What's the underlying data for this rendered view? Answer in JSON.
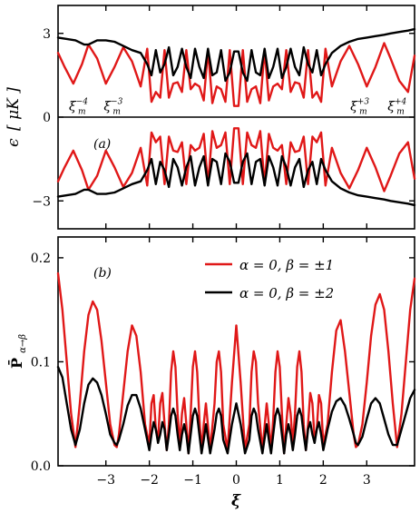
{
  "figure": {
    "xlabel": "ξ",
    "x_ticks": [
      "−3",
      "−2",
      "−1",
      "0",
      "1",
      "2",
      "3"
    ],
    "colors": {
      "red": "#e01818",
      "black": "#000000"
    }
  },
  "chart_data": [
    {
      "type": "line",
      "panel_label": "(a)",
      "ylabel_parts": {
        "sym": "ϵ",
        "open": "[",
        "unit": "μK",
        "close": "]"
      },
      "xlim": [
        -4.1,
        4.1
      ],
      "ylim": [
        -4.0,
        4.0
      ],
      "y_ticks": [
        "3",
        "0",
        "−3"
      ],
      "y_tick_values": [
        3,
        0,
        -3
      ],
      "annotations": [
        {
          "base": "ξ",
          "sub": "m",
          "sup": "−4",
          "x": -3.85,
          "y": 0.25
        },
        {
          "base": "ξ",
          "sub": "m",
          "sup": "−3",
          "x": -3.05,
          "y": 0.25
        },
        {
          "base": "ξ",
          "sub": "m",
          "sup": "+3",
          "x": 2.62,
          "y": 0.25
        },
        {
          "base": "ξ",
          "sub": "m",
          "sup": "+4",
          "x": 3.48,
          "y": 0.25
        }
      ],
      "series": [
        {
          "color": "#e01818",
          "x": [
            -4.1,
            -3.95,
            -3.75,
            -3.55,
            -3.4,
            -3.2,
            -3.0,
            -2.8,
            -2.6,
            -2.4,
            -2.2,
            -2.05,
            -1.95,
            -1.85,
            -1.75,
            -1.65,
            -1.55,
            -1.45,
            -1.35,
            -1.25,
            -1.15,
            -1.05,
            -0.95,
            -0.85,
            -0.75,
            -0.65,
            -0.55,
            -0.45,
            -0.35,
            -0.25,
            -0.15,
            -0.05,
            0.05,
            0.15,
            0.25,
            0.35,
            0.45,
            0.55,
            0.65,
            0.75,
            0.85,
            0.95,
            1.05,
            1.15,
            1.25,
            1.35,
            1.45,
            1.55,
            1.65,
            1.75,
            1.85,
            1.95,
            2.05,
            2.2,
            2.4,
            2.6,
            2.8,
            3.0,
            3.2,
            3.4,
            3.55,
            3.75,
            3.95,
            4.1
          ],
          "y": [
            2.3,
            1.8,
            1.2,
            1.9,
            2.6,
            2.1,
            1.2,
            1.8,
            2.5,
            2.0,
            1.1,
            2.45,
            0.55,
            0.9,
            0.7,
            2.4,
            0.7,
            1.2,
            1.25,
            0.9,
            2.4,
            1.0,
            1.2,
            1.1,
            0.6,
            2.4,
            0.5,
            1.1,
            1.0,
            0.55,
            2.4,
            0.4,
            0.4,
            2.4,
            0.55,
            1.0,
            1.1,
            0.5,
            2.4,
            0.6,
            1.1,
            1.2,
            1.0,
            2.4,
            0.9,
            1.25,
            1.2,
            0.7,
            2.4,
            0.7,
            0.9,
            0.55,
            2.45,
            1.1,
            2.0,
            2.55,
            1.9,
            1.1,
            1.8,
            2.65,
            2.1,
            1.3,
            0.9,
            2.2
          ]
        },
        {
          "color": "#000000",
          "x": [
            -4.1,
            -3.9,
            -3.7,
            -3.5,
            -3.4,
            -3.2,
            -3.0,
            -2.8,
            -2.6,
            -2.4,
            -2.2,
            -2.05,
            -1.95,
            -1.85,
            -1.75,
            -1.65,
            -1.55,
            -1.45,
            -1.35,
            -1.25,
            -1.15,
            -1.05,
            -0.95,
            -0.85,
            -0.75,
            -0.65,
            -0.55,
            -0.45,
            -0.35,
            -0.25,
            -0.15,
            -0.05,
            0.05,
            0.15,
            0.25,
            0.35,
            0.45,
            0.55,
            0.65,
            0.75,
            0.85,
            0.95,
            1.05,
            1.15,
            1.25,
            1.35,
            1.45,
            1.55,
            1.65,
            1.75,
            1.85,
            1.95,
            2.05,
            2.2,
            2.4,
            2.6,
            2.8,
            3.0,
            3.2,
            3.4,
            3.55,
            3.75,
            3.95,
            4.1
          ],
          "y": [
            2.85,
            2.8,
            2.75,
            2.6,
            2.6,
            2.75,
            2.75,
            2.7,
            2.55,
            2.4,
            2.3,
            1.9,
            1.5,
            2.4,
            1.6,
            1.9,
            2.5,
            1.5,
            1.8,
            2.45,
            1.8,
            1.4,
            2.45,
            1.8,
            1.4,
            2.45,
            1.5,
            1.6,
            2.4,
            1.3,
            1.6,
            2.35,
            2.35,
            1.6,
            1.3,
            2.4,
            1.6,
            1.5,
            2.45,
            1.4,
            1.8,
            2.45,
            1.4,
            1.8,
            2.45,
            1.8,
            1.5,
            2.5,
            1.9,
            1.6,
            2.4,
            1.5,
            1.9,
            2.3,
            2.55,
            2.7,
            2.8,
            2.85,
            2.9,
            2.95,
            3.0,
            3.05,
            3.1,
            3.15
          ]
        },
        {
          "color": "#e01818",
          "x": [
            -4.1,
            -3.95,
            -3.75,
            -3.55,
            -3.4,
            -3.2,
            -3.0,
            -2.8,
            -2.6,
            -2.4,
            -2.2,
            -2.05,
            -1.95,
            -1.85,
            -1.75,
            -1.65,
            -1.55,
            -1.45,
            -1.35,
            -1.25,
            -1.15,
            -1.05,
            -0.95,
            -0.85,
            -0.75,
            -0.65,
            -0.55,
            -0.45,
            -0.35,
            -0.25,
            -0.15,
            -0.05,
            0.05,
            0.15,
            0.25,
            0.35,
            0.45,
            0.55,
            0.65,
            0.75,
            0.85,
            0.95,
            1.05,
            1.15,
            1.25,
            1.35,
            1.45,
            1.55,
            1.65,
            1.75,
            1.85,
            1.95,
            2.05,
            2.2,
            2.4,
            2.6,
            2.8,
            3.0,
            3.2,
            3.4,
            3.55,
            3.75,
            3.95,
            4.1
          ],
          "y": [
            -2.3,
            -1.8,
            -1.2,
            -1.9,
            -2.6,
            -2.1,
            -1.2,
            -1.8,
            -2.5,
            -2.0,
            -1.1,
            -2.45,
            -0.55,
            -0.9,
            -0.7,
            -2.4,
            -0.7,
            -1.2,
            -1.25,
            -0.9,
            -2.4,
            -1.0,
            -1.2,
            -1.1,
            -0.6,
            -2.4,
            -0.5,
            -1.1,
            -1.0,
            -0.55,
            -2.4,
            -0.4,
            -0.4,
            -2.4,
            -0.55,
            -1.0,
            -1.1,
            -0.5,
            -2.4,
            -0.6,
            -1.1,
            -1.2,
            -1.0,
            -2.4,
            -0.9,
            -1.25,
            -1.2,
            -0.7,
            -2.4,
            -0.7,
            -0.9,
            -0.55,
            -2.45,
            -1.1,
            -2.0,
            -2.55,
            -1.9,
            -1.1,
            -1.8,
            -2.65,
            -2.1,
            -1.3,
            -0.9,
            -2.2
          ]
        },
        {
          "color": "#000000",
          "x": [
            -4.1,
            -3.9,
            -3.7,
            -3.5,
            -3.4,
            -3.2,
            -3.0,
            -2.8,
            -2.6,
            -2.4,
            -2.2,
            -2.05,
            -1.95,
            -1.85,
            -1.75,
            -1.65,
            -1.55,
            -1.45,
            -1.35,
            -1.25,
            -1.15,
            -1.05,
            -0.95,
            -0.85,
            -0.75,
            -0.65,
            -0.55,
            -0.45,
            -0.35,
            -0.25,
            -0.15,
            -0.05,
            0.05,
            0.15,
            0.25,
            0.35,
            0.45,
            0.55,
            0.65,
            0.75,
            0.85,
            0.95,
            1.05,
            1.15,
            1.25,
            1.35,
            1.45,
            1.55,
            1.65,
            1.75,
            1.85,
            1.95,
            2.05,
            2.2,
            2.4,
            2.6,
            2.8,
            3.0,
            3.2,
            3.4,
            3.55,
            3.75,
            3.95,
            4.1
          ],
          "y": [
            -2.85,
            -2.8,
            -2.75,
            -2.6,
            -2.6,
            -2.75,
            -2.75,
            -2.7,
            -2.55,
            -2.4,
            -2.3,
            -1.9,
            -1.5,
            -2.4,
            -1.6,
            -1.9,
            -2.5,
            -1.5,
            -1.8,
            -2.45,
            -1.8,
            -1.4,
            -2.45,
            -1.8,
            -1.4,
            -2.45,
            -1.5,
            -1.6,
            -2.4,
            -1.3,
            -1.6,
            -2.35,
            -2.35,
            -1.6,
            -1.3,
            -2.4,
            -1.6,
            -1.5,
            -2.45,
            -1.4,
            -1.8,
            -2.45,
            -1.4,
            -1.8,
            -2.45,
            -1.8,
            -1.5,
            -2.5,
            -1.9,
            -1.6,
            -2.4,
            -1.5,
            -1.9,
            -2.3,
            -2.55,
            -2.7,
            -2.8,
            -2.85,
            -2.9,
            -2.95,
            -3.0,
            -3.05,
            -3.1,
            -3.15
          ]
        }
      ]
    },
    {
      "type": "line",
      "panel_label": "(b)",
      "ylabel_parts": {
        "base": "P̄",
        "sub": "α→β"
      },
      "xlim": [
        -4.1,
        4.1
      ],
      "ylim": [
        0.0,
        0.22
      ],
      "y_ticks": [
        "0.2",
        "0.1",
        "0.0"
      ],
      "y_tick_values": [
        0.2,
        0.1,
        0.0
      ],
      "series": [
        {
          "name": "α = 0, β = ±1",
          "color": "#e01818",
          "x": [
            -4.1,
            -4.0,
            -3.9,
            -3.8,
            -3.7,
            -3.6,
            -3.5,
            -3.4,
            -3.3,
            -3.2,
            -3.1,
            -3.0,
            -2.9,
            -2.8,
            -2.75,
            -2.7,
            -2.6,
            -2.5,
            -2.4,
            -2.3,
            -2.2,
            -2.1,
            -2.0,
            -1.95,
            -1.9,
            -1.85,
            -1.8,
            -1.75,
            -1.7,
            -1.65,
            -1.6,
            -1.55,
            -1.5,
            -1.45,
            -1.4,
            -1.35,
            -1.3,
            -1.25,
            -1.2,
            -1.15,
            -1.1,
            -1.05,
            -1.0,
            -0.95,
            -0.9,
            -0.85,
            -0.8,
            -0.75,
            -0.7,
            -0.6,
            -0.5,
            -0.45,
            -0.4,
            -0.35,
            -0.3,
            -0.2,
            -0.1,
            0.0,
            0.1,
            0.2,
            0.3,
            0.35,
            0.4,
            0.45,
            0.5,
            0.6,
            0.7,
            0.75,
            0.8,
            0.85,
            0.9,
            0.95,
            1.0,
            1.05,
            1.1,
            1.15,
            1.2,
            1.25,
            1.3,
            1.35,
            1.4,
            1.45,
            1.5,
            1.55,
            1.6,
            1.65,
            1.7,
            1.75,
            1.8,
            1.85,
            1.9,
            1.95,
            2.0,
            2.1,
            2.2,
            2.3,
            2.4,
            2.5,
            2.6,
            2.7,
            2.75,
            2.8,
            2.9,
            3.0,
            3.1,
            3.2,
            3.3,
            3.4,
            3.5,
            3.6,
            3.7,
            3.8,
            3.9,
            4.0,
            4.1
          ],
          "y": [
            0.185,
            0.15,
            0.1,
            0.05,
            0.018,
            0.06,
            0.11,
            0.145,
            0.158,
            0.15,
            0.12,
            0.08,
            0.04,
            0.02,
            0.018,
            0.03,
            0.07,
            0.11,
            0.135,
            0.125,
            0.09,
            0.04,
            0.02,
            0.06,
            0.068,
            0.035,
            0.025,
            0.06,
            0.07,
            0.04,
            0.015,
            0.04,
            0.09,
            0.11,
            0.095,
            0.05,
            0.02,
            0.05,
            0.065,
            0.04,
            0.012,
            0.05,
            0.095,
            0.11,
            0.09,
            0.045,
            0.015,
            0.04,
            0.06,
            0.015,
            0.06,
            0.1,
            0.11,
            0.09,
            0.04,
            0.015,
            0.08,
            0.135,
            0.08,
            0.015,
            0.04,
            0.09,
            0.11,
            0.1,
            0.06,
            0.015,
            0.06,
            0.04,
            0.015,
            0.045,
            0.09,
            0.11,
            0.095,
            0.05,
            0.012,
            0.04,
            0.065,
            0.05,
            0.02,
            0.05,
            0.095,
            0.11,
            0.09,
            0.04,
            0.015,
            0.04,
            0.07,
            0.06,
            0.025,
            0.035,
            0.068,
            0.06,
            0.02,
            0.04,
            0.09,
            0.13,
            0.14,
            0.11,
            0.07,
            0.03,
            0.018,
            0.02,
            0.04,
            0.08,
            0.125,
            0.155,
            0.165,
            0.15,
            0.11,
            0.06,
            0.018,
            0.05,
            0.1,
            0.15,
            0.18
          ]
        },
        {
          "name": "α = 0, β = ±2",
          "color": "#000000",
          "x": [
            -4.1,
            -4.0,
            -3.9,
            -3.8,
            -3.7,
            -3.6,
            -3.5,
            -3.4,
            -3.3,
            -3.2,
            -3.1,
            -3.0,
            -2.9,
            -2.8,
            -2.75,
            -2.7,
            -2.6,
            -2.5,
            -2.4,
            -2.3,
            -2.2,
            -2.1,
            -2.0,
            -1.95,
            -1.9,
            -1.85,
            -1.8,
            -1.75,
            -1.7,
            -1.65,
            -1.6,
            -1.55,
            -1.5,
            -1.45,
            -1.4,
            -1.35,
            -1.3,
            -1.25,
            -1.2,
            -1.15,
            -1.1,
            -1.05,
            -1.0,
            -0.95,
            -0.9,
            -0.85,
            -0.8,
            -0.75,
            -0.7,
            -0.6,
            -0.5,
            -0.45,
            -0.4,
            -0.35,
            -0.3,
            -0.2,
            -0.1,
            0.0,
            0.1,
            0.2,
            0.3,
            0.35,
            0.4,
            0.45,
            0.5,
            0.6,
            0.7,
            0.75,
            0.8,
            0.85,
            0.9,
            0.95,
            1.0,
            1.05,
            1.1,
            1.15,
            1.2,
            1.25,
            1.3,
            1.35,
            1.4,
            1.45,
            1.5,
            1.55,
            1.6,
            1.65,
            1.7,
            1.75,
            1.8,
            1.85,
            1.9,
            1.95,
            2.0,
            2.1,
            2.2,
            2.3,
            2.4,
            2.5,
            2.6,
            2.7,
            2.75,
            2.8,
            2.9,
            3.0,
            3.1,
            3.2,
            3.3,
            3.4,
            3.5,
            3.6,
            3.7,
            3.8,
            3.9,
            4.0,
            4.1
          ],
          "y": [
            0.095,
            0.085,
            0.06,
            0.035,
            0.02,
            0.035,
            0.06,
            0.078,
            0.084,
            0.08,
            0.068,
            0.05,
            0.03,
            0.022,
            0.02,
            0.025,
            0.04,
            0.058,
            0.068,
            0.068,
            0.055,
            0.035,
            0.015,
            0.03,
            0.042,
            0.035,
            0.022,
            0.03,
            0.042,
            0.035,
            0.015,
            0.03,
            0.048,
            0.055,
            0.048,
            0.03,
            0.015,
            0.03,
            0.04,
            0.03,
            0.012,
            0.03,
            0.048,
            0.055,
            0.048,
            0.03,
            0.012,
            0.025,
            0.04,
            0.012,
            0.035,
            0.05,
            0.055,
            0.048,
            0.025,
            0.012,
            0.04,
            0.06,
            0.04,
            0.012,
            0.025,
            0.048,
            0.055,
            0.05,
            0.035,
            0.012,
            0.04,
            0.025,
            0.012,
            0.03,
            0.048,
            0.055,
            0.048,
            0.03,
            0.012,
            0.03,
            0.04,
            0.03,
            0.015,
            0.03,
            0.048,
            0.055,
            0.048,
            0.03,
            0.015,
            0.035,
            0.042,
            0.03,
            0.022,
            0.035,
            0.042,
            0.03,
            0.015,
            0.035,
            0.052,
            0.062,
            0.065,
            0.058,
            0.045,
            0.03,
            0.022,
            0.02,
            0.028,
            0.045,
            0.06,
            0.065,
            0.06,
            0.045,
            0.03,
            0.02,
            0.02,
            0.035,
            0.05,
            0.065,
            0.073
          ]
        }
      ]
    }
  ]
}
